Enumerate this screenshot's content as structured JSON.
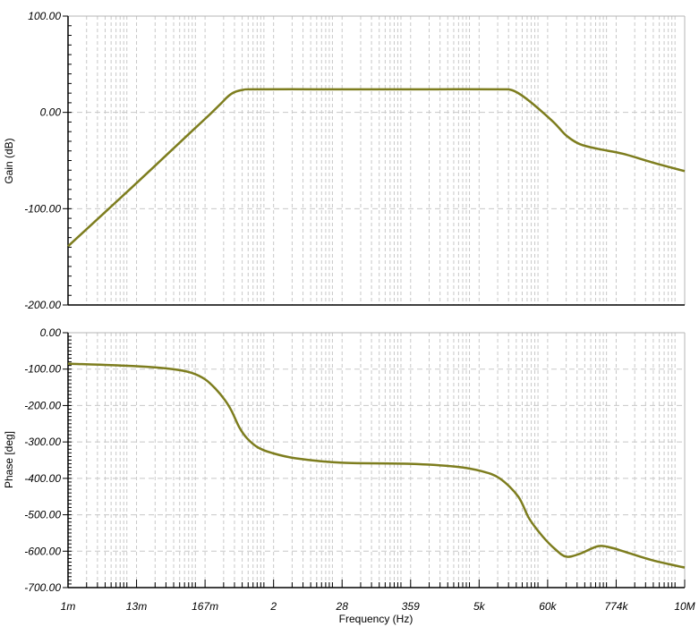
{
  "chart_data": [
    {
      "type": "line",
      "ylabel": "Gain (dB)",
      "xscale": "log",
      "xlim": [
        0.001,
        10000000
      ],
      "ylim": [
        -200,
        100
      ],
      "yticks": [
        "100.00",
        "0.00",
        "-100.00",
        "-200.00"
      ],
      "ytick_values": [
        100,
        0,
        -100,
        -200
      ],
      "grid": true,
      "series": [
        {
          "color": "#7d7d1e",
          "x": [
            0.001,
            0.01,
            0.1,
            0.2,
            0.3,
            0.4,
            0.5,
            0.7,
            1,
            10,
            100,
            1000,
            10000,
            15000,
            20000,
            30000,
            50000,
            80000,
            120000,
            200000,
            400000,
            1000000,
            3000000,
            10000000
          ],
          "y": [
            -139,
            -80,
            -20,
            -2,
            9,
            17,
            21,
            23.5,
            24,
            24,
            24,
            24,
            24,
            23.5,
            20,
            12,
            0,
            -12,
            -24,
            -33,
            -38,
            -43,
            -52,
            -61
          ]
        }
      ]
    },
    {
      "type": "line",
      "xlabel": "Frequency (Hz)",
      "ylabel": "Phase [deg]",
      "xscale": "log",
      "xlim": [
        0.001,
        10000000
      ],
      "xticks": [
        "1m",
        "13m",
        "167m",
        "2",
        "28",
        "359",
        "5k",
        "60k",
        "774k",
        "10M"
      ],
      "xtick_values": [
        0.001,
        0.0129,
        0.167,
        2.15,
        27.8,
        359,
        4640,
        59900,
        774000,
        10000000
      ],
      "ylim": [
        -700,
        0
      ],
      "yticks": [
        "0.00",
        "-100.00",
        "-200.00",
        "-300.00",
        "-400.00",
        "-500.00",
        "-600.00",
        "-700.00"
      ],
      "ytick_values": [
        0,
        -100,
        -200,
        -300,
        -400,
        -500,
        -600,
        -700
      ],
      "grid": true,
      "series": [
        {
          "color": "#7d7d1e",
          "x": [
            0.001,
            0.013,
            0.05,
            0.1,
            0.167,
            0.25,
            0.35,
            0.45,
            0.6,
            0.8,
            1.2,
            2,
            5,
            28,
            359,
            2000,
            5000,
            10000,
            20000,
            30000,
            50000,
            80000,
            120000,
            200000,
            400000,
            700000,
            1000000,
            3000000,
            10000000
          ],
          "y": [
            -85,
            -92,
            -100,
            -110,
            -128,
            -155,
            -185,
            -215,
            -260,
            -290,
            -315,
            -330,
            -345,
            -357,
            -360,
            -368,
            -380,
            -400,
            -450,
            -510,
            -560,
            -595,
            -615,
            -607,
            -586,
            -592,
            -600,
            -625,
            -645
          ]
        }
      ]
    }
  ]
}
